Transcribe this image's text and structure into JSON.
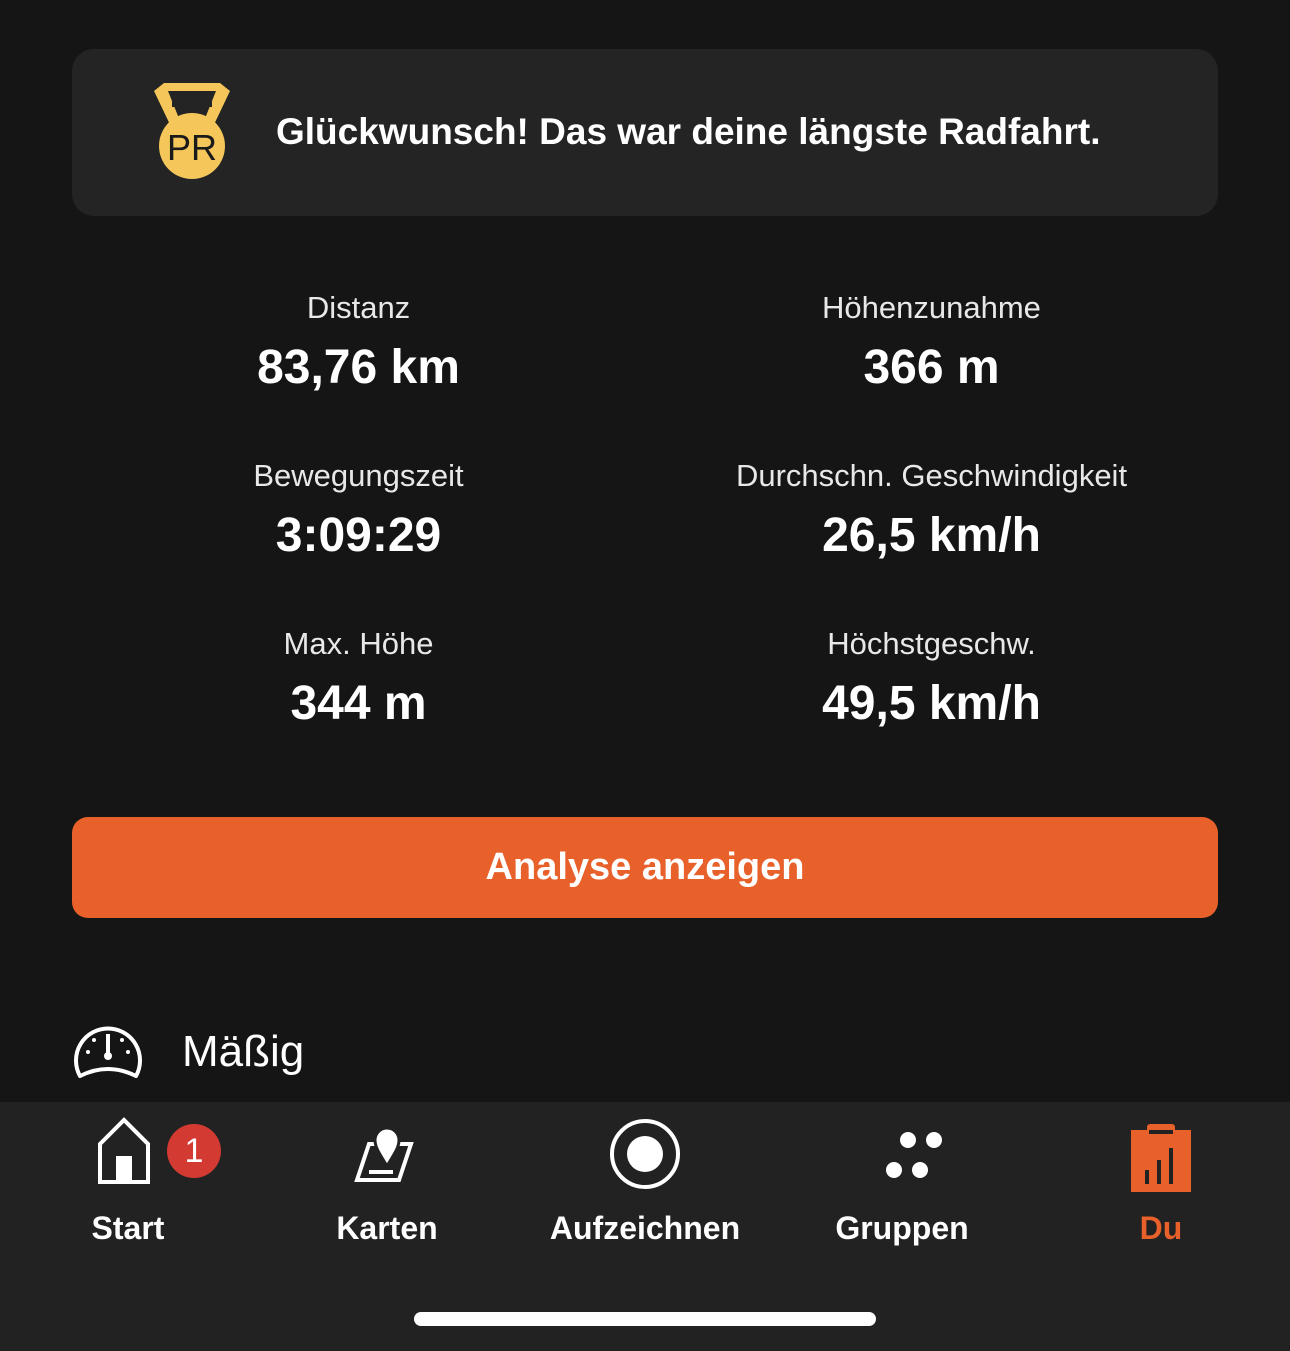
{
  "banner": {
    "icon": "pr-medal-icon",
    "icon_text": "PR",
    "message": "Glückwunsch! Das war deine längste Radfahrt."
  },
  "stats": [
    {
      "label": "Distanz",
      "value": "83,76 km"
    },
    {
      "label": "Höhenzunahme",
      "value": "366 m"
    },
    {
      "label": "Bewegungszeit",
      "value": "3:09:29"
    },
    {
      "label": "Durchschn. Geschwindigkeit",
      "value": "26,5 km/h"
    },
    {
      "label": "Max. Höhe",
      "value": "344 m"
    },
    {
      "label": "Höchstgeschw.",
      "value": "49,5 km/h"
    }
  ],
  "analysis_button": "Analyse anzeigen",
  "effort": {
    "icon": "gauge-icon",
    "label": "Mäßig"
  },
  "nav": {
    "items": [
      {
        "label": "Start",
        "icon": "home-icon",
        "badge": "1"
      },
      {
        "label": "Karten",
        "icon": "map-icon"
      },
      {
        "label": "Aufzeichnen",
        "icon": "record-icon"
      },
      {
        "label": "Gruppen",
        "icon": "groups-icon"
      },
      {
        "label": "Du",
        "icon": "profile-stats-icon",
        "active": true
      }
    ],
    "active_color": "#e8602a"
  },
  "colors": {
    "accent": "#e8602a",
    "pr_gold": "#f5c75a",
    "badge": "#d33a32"
  }
}
